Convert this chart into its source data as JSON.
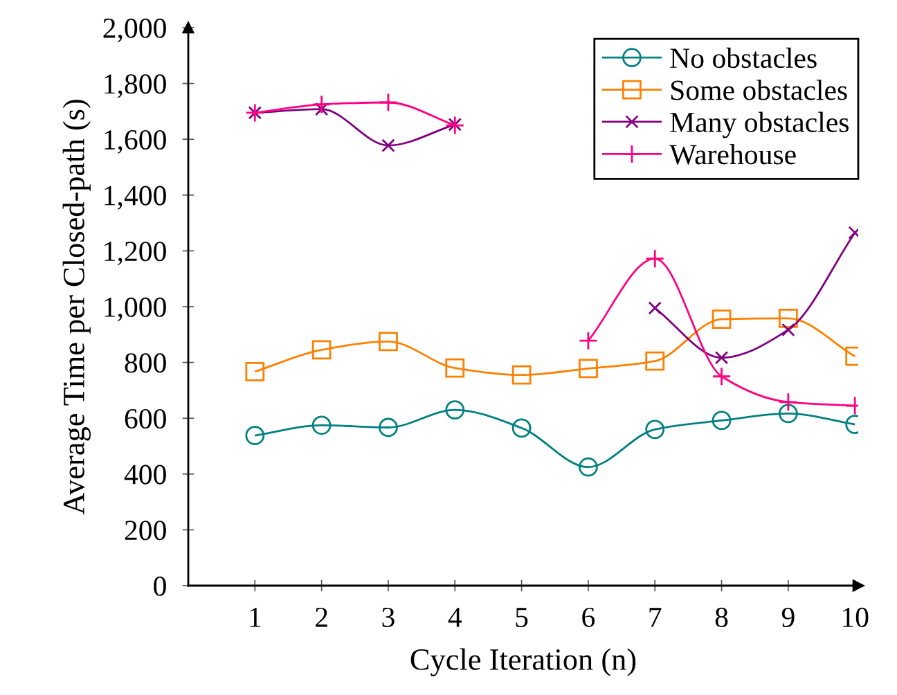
{
  "chart_data": {
    "type": "line",
    "xlabel": "Cycle Iteration (n)",
    "ylabel": "Average Time per Closed-path (s)",
    "x": [
      1,
      2,
      3,
      4,
      5,
      6,
      7,
      8,
      9,
      10
    ],
    "xlim": [
      0,
      10.05
    ],
    "xticks": [
      1,
      2,
      3,
      4,
      5,
      6,
      7,
      8,
      9,
      10
    ],
    "ylim": [
      0,
      2000
    ],
    "yticks": [
      0,
      200,
      400,
      600,
      800,
      {
        "value": 1000,
        "label": "1,000"
      },
      {
        "value": 1200,
        "label": "1,200"
      },
      {
        "value": 1400,
        "label": "1,400"
      },
      {
        "value": 1600,
        "label": "1,600"
      },
      {
        "value": 1800,
        "label": "1,800"
      },
      {
        "value": 2000,
        "label": "2,000"
      }
    ],
    "grid": false,
    "legend": "top right",
    "line_style": "solid",
    "series": [
      {
        "name": "No obstacles",
        "color": "#008080",
        "marker": "circle",
        "values": [
          538,
          575,
          567,
          630,
          565,
          425,
          560,
          592,
          617,
          578
        ]
      },
      {
        "name": "Some obstacles",
        "color": "#ff8000",
        "marker": "square",
        "values": [
          767,
          845,
          875,
          780,
          755,
          778,
          805,
          955,
          958,
          822
        ]
      },
      {
        "name": "Many obstacles",
        "color": "#800080",
        "marker": "cross",
        "values": [
          1695,
          1708,
          1578,
          1653,
          null,
          null,
          995,
          817,
          917,
          1265
        ]
      },
      {
        "name": "Warehouse",
        "color": "#ff0080",
        "marker": "plus",
        "values": [
          1695,
          1725,
          1732,
          1650,
          null,
          878,
          1172,
          750,
          658,
          645
        ]
      }
    ]
  }
}
